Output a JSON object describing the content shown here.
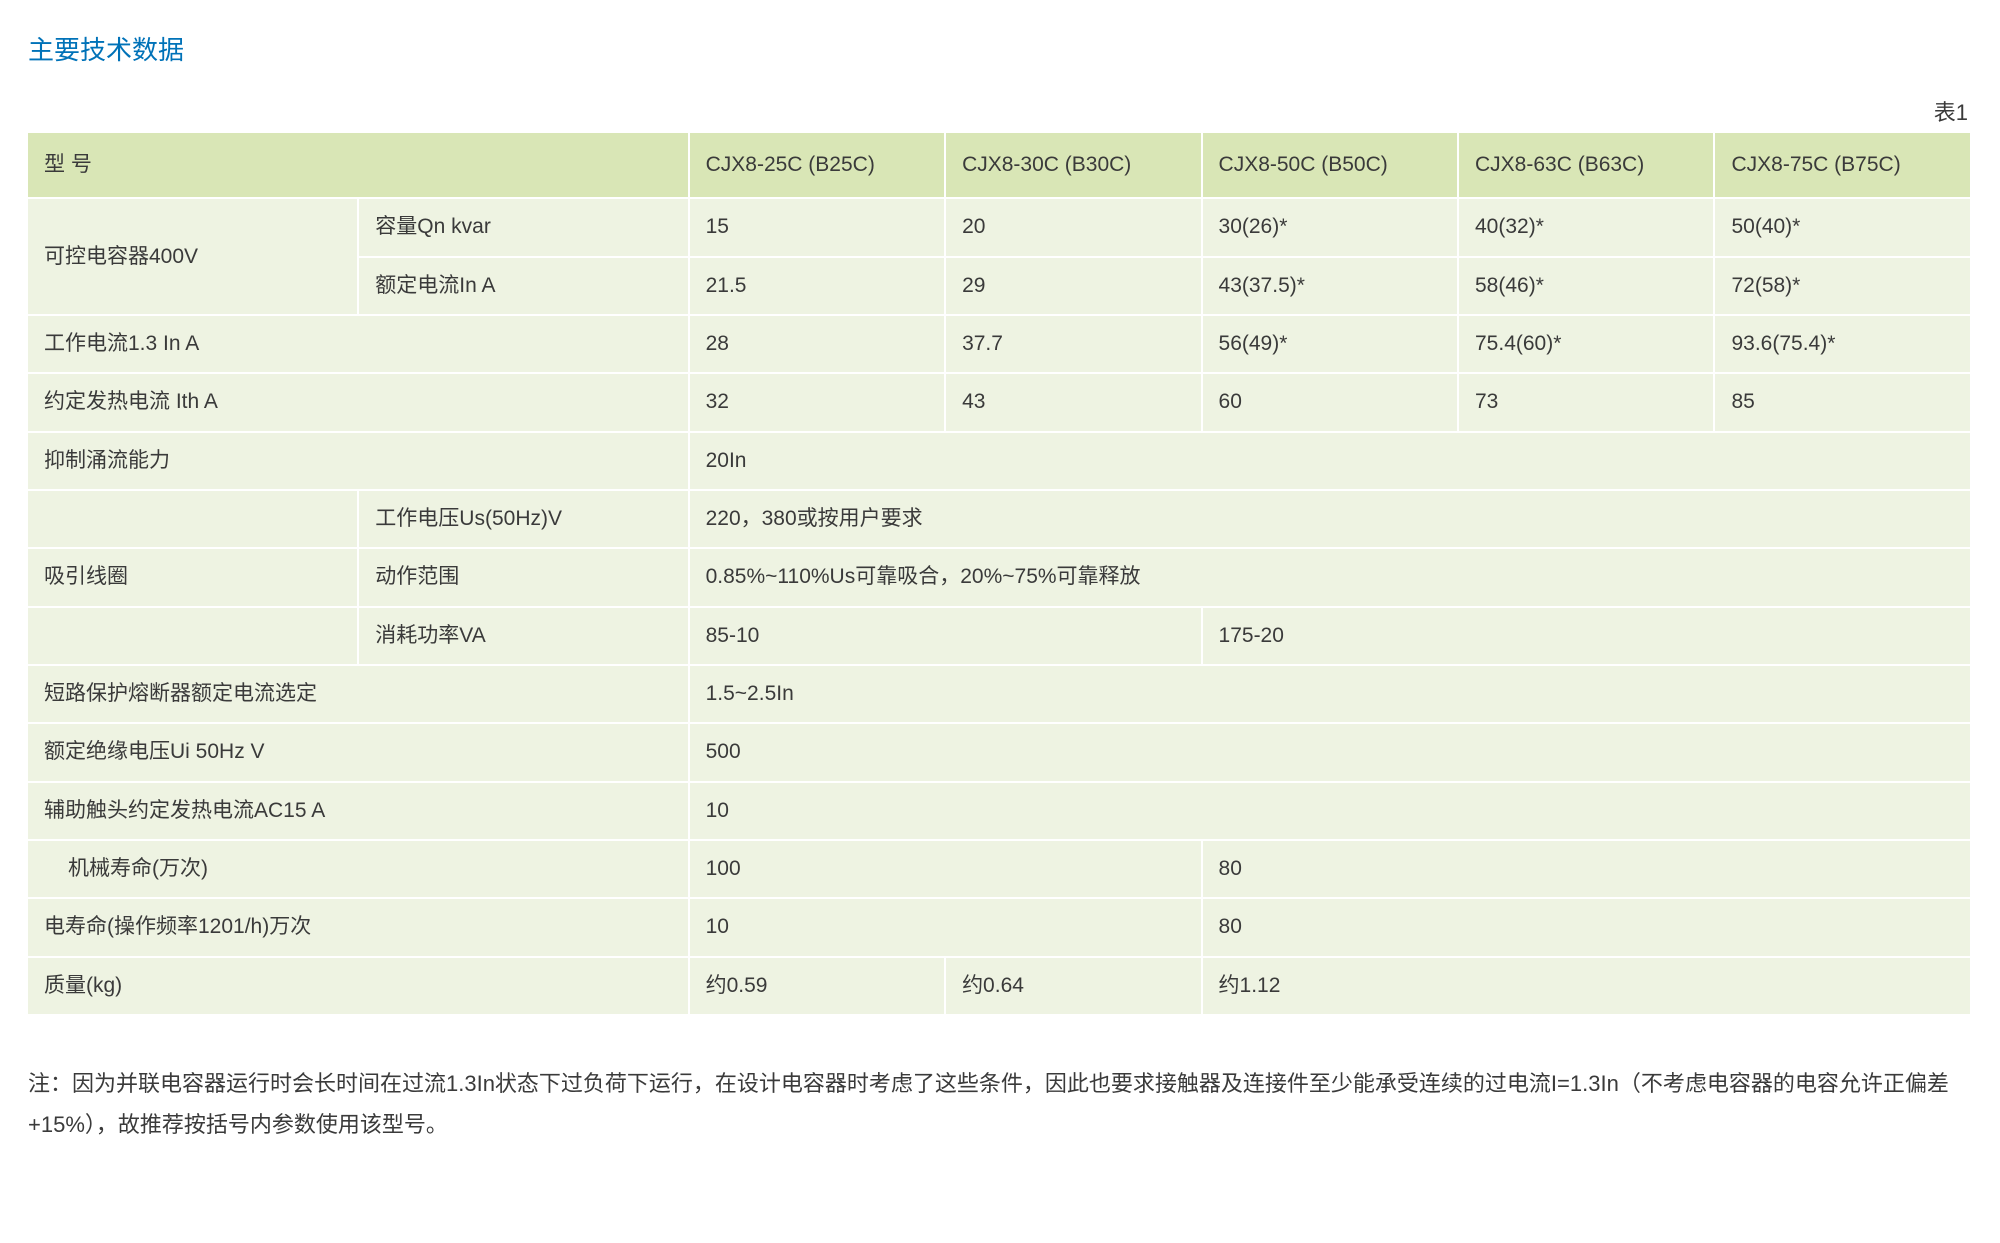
{
  "title": "主要技术数据",
  "title_color": "#0072b8",
  "table_label": "表1",
  "colors": {
    "header_bg": "#d9e6b6",
    "body_bg": "#eef3e2",
    "row_border": "#ffffff",
    "text": "#3a3a3a"
  },
  "col_widths_pct": [
    17,
    17,
    13.2,
    13.2,
    13.2,
    13.2,
    13.2
  ],
  "header_row": {
    "label": "型 号",
    "models": [
      "CJX8-25C (B25C)",
      "CJX8-30C (B30C)",
      "CJX8-50C (B50C)",
      "CJX8-63C (B63C)",
      "CJX8-75C (B75C)"
    ]
  },
  "rows": [
    {
      "type": "group2",
      "group_label": "可控电容器400V",
      "sub_label": "容量Qn kvar",
      "values": [
        "15",
        "20",
        "30(26)*",
        "40(32)*",
        "50(40)*"
      ]
    },
    {
      "type": "sub",
      "sub_label": "额定电流In A",
      "values": [
        "21.5",
        "29",
        "43(37.5)*",
        "58(46)*",
        "72(58)*"
      ]
    },
    {
      "type": "span2",
      "label": "工作电流1.3 In A",
      "values": [
        "28",
        "37.7",
        "56(49)*",
        "75.4(60)*",
        "93.6(75.4)*"
      ]
    },
    {
      "type": "span2",
      "label": "约定发热电流 Ith A",
      "values": [
        "32",
        "43",
        "60",
        "73",
        "85"
      ]
    },
    {
      "type": "span2_full",
      "label": "抑制涌流能力",
      "value": "20In"
    },
    {
      "type": "group3_blank_first",
      "sub_label": "工作电压Us(50Hz)V",
      "value": "220，380或按用户要求"
    },
    {
      "type": "group3_label",
      "group_label": "吸引线圈",
      "sub_label": "动作范围",
      "value": "0.85%~110%Us可靠吸合，20%~75%可靠释放"
    },
    {
      "type": "sub_2col",
      "sub_label": "消耗功率VA",
      "v1": "85-10",
      "v2": "175-20"
    },
    {
      "type": "span2_full",
      "label": "短路保护熔断器额定电流选定",
      "value": "1.5~2.5In"
    },
    {
      "type": "span2_full",
      "label": "额定绝缘电压Ui  50Hz V",
      "value": "500"
    },
    {
      "type": "span2_full",
      "label": "辅助触头约定发热电流AC15 A",
      "value": "10"
    },
    {
      "type": "span2_2col_indent",
      "label": "机械寿命(万次)",
      "v1": "100",
      "v2": "80"
    },
    {
      "type": "span2_2col",
      "label": "电寿命(操作频率1201/h)万次",
      "v1": "10",
      "v2": "80"
    },
    {
      "type": "span2_3val",
      "label": "质量(kg)",
      "v1": "约0.59",
      "v2": "约0.64",
      "v3": "约1.12"
    }
  ],
  "note": "注：因为并联电容器运行时会长时间在过流1.3In状态下过负荷下运行，在设计电容器时考虑了这些条件，因此也要求接触器及连接件至少能承受连续的过电流I=1.3In（不考虑电容器的电容允许正偏差+15%），故推荐按括号内参数使用该型号。"
}
